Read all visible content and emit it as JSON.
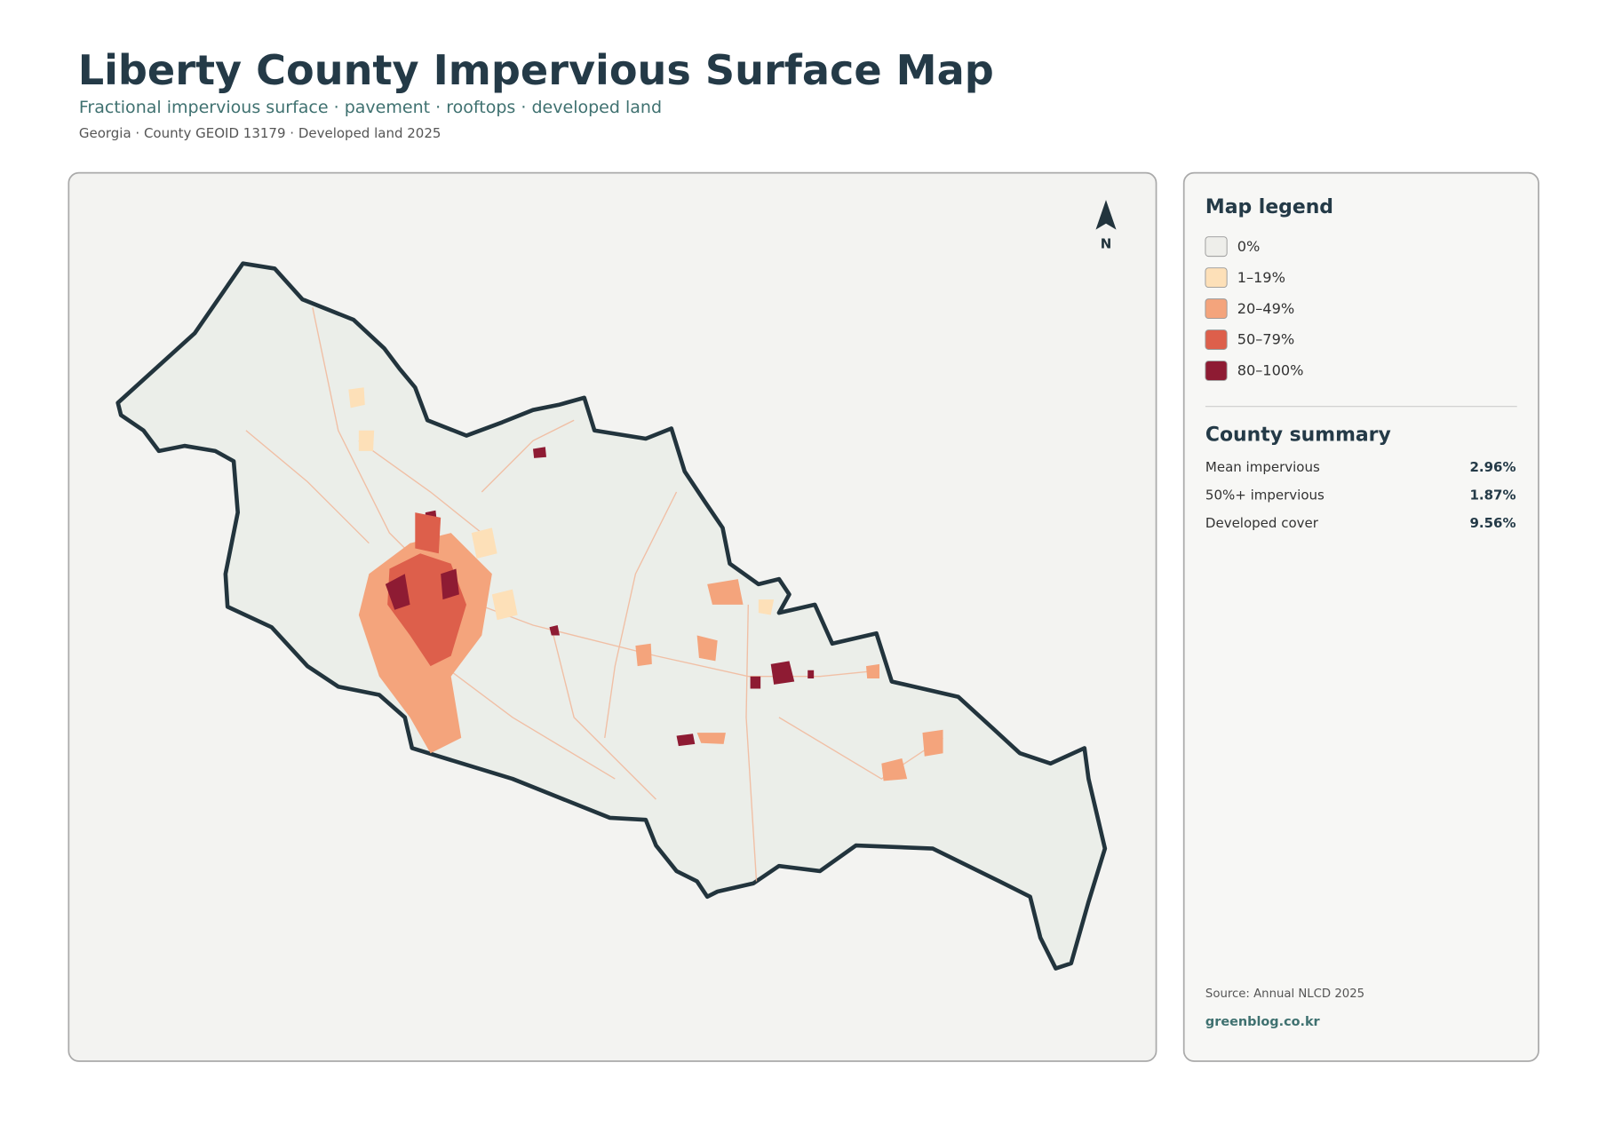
{
  "header": {
    "title": "Liberty County Impervious Surface Map",
    "subtitle": "Fractional impervious surface · pavement · rooftops · developed land",
    "meta": "Georgia · County GEOID 13179 · Developed land 2025"
  },
  "map": {
    "north_label": "N"
  },
  "legend": {
    "title": "Map legend",
    "items": [
      {
        "label": "0%",
        "color": "#eeeeea"
      },
      {
        "label": "1–19%",
        "color": "#fde0b8"
      },
      {
        "label": "20–49%",
        "color": "#f4a47c"
      },
      {
        "label": "50–79%",
        "color": "#dd5f4b"
      },
      {
        "label": "80–100%",
        "color": "#8e1b33"
      }
    ]
  },
  "summary": {
    "title": "County summary",
    "rows": [
      {
        "label": "Mean impervious",
        "value": "2.96%"
      },
      {
        "label": "50%+ impervious",
        "value": "1.87%"
      },
      {
        "label": "Developed cover",
        "value": "9.56%"
      }
    ]
  },
  "footer": {
    "source": "Source: Annual NLCD 2025",
    "site": "greenblog.co.kr"
  }
}
